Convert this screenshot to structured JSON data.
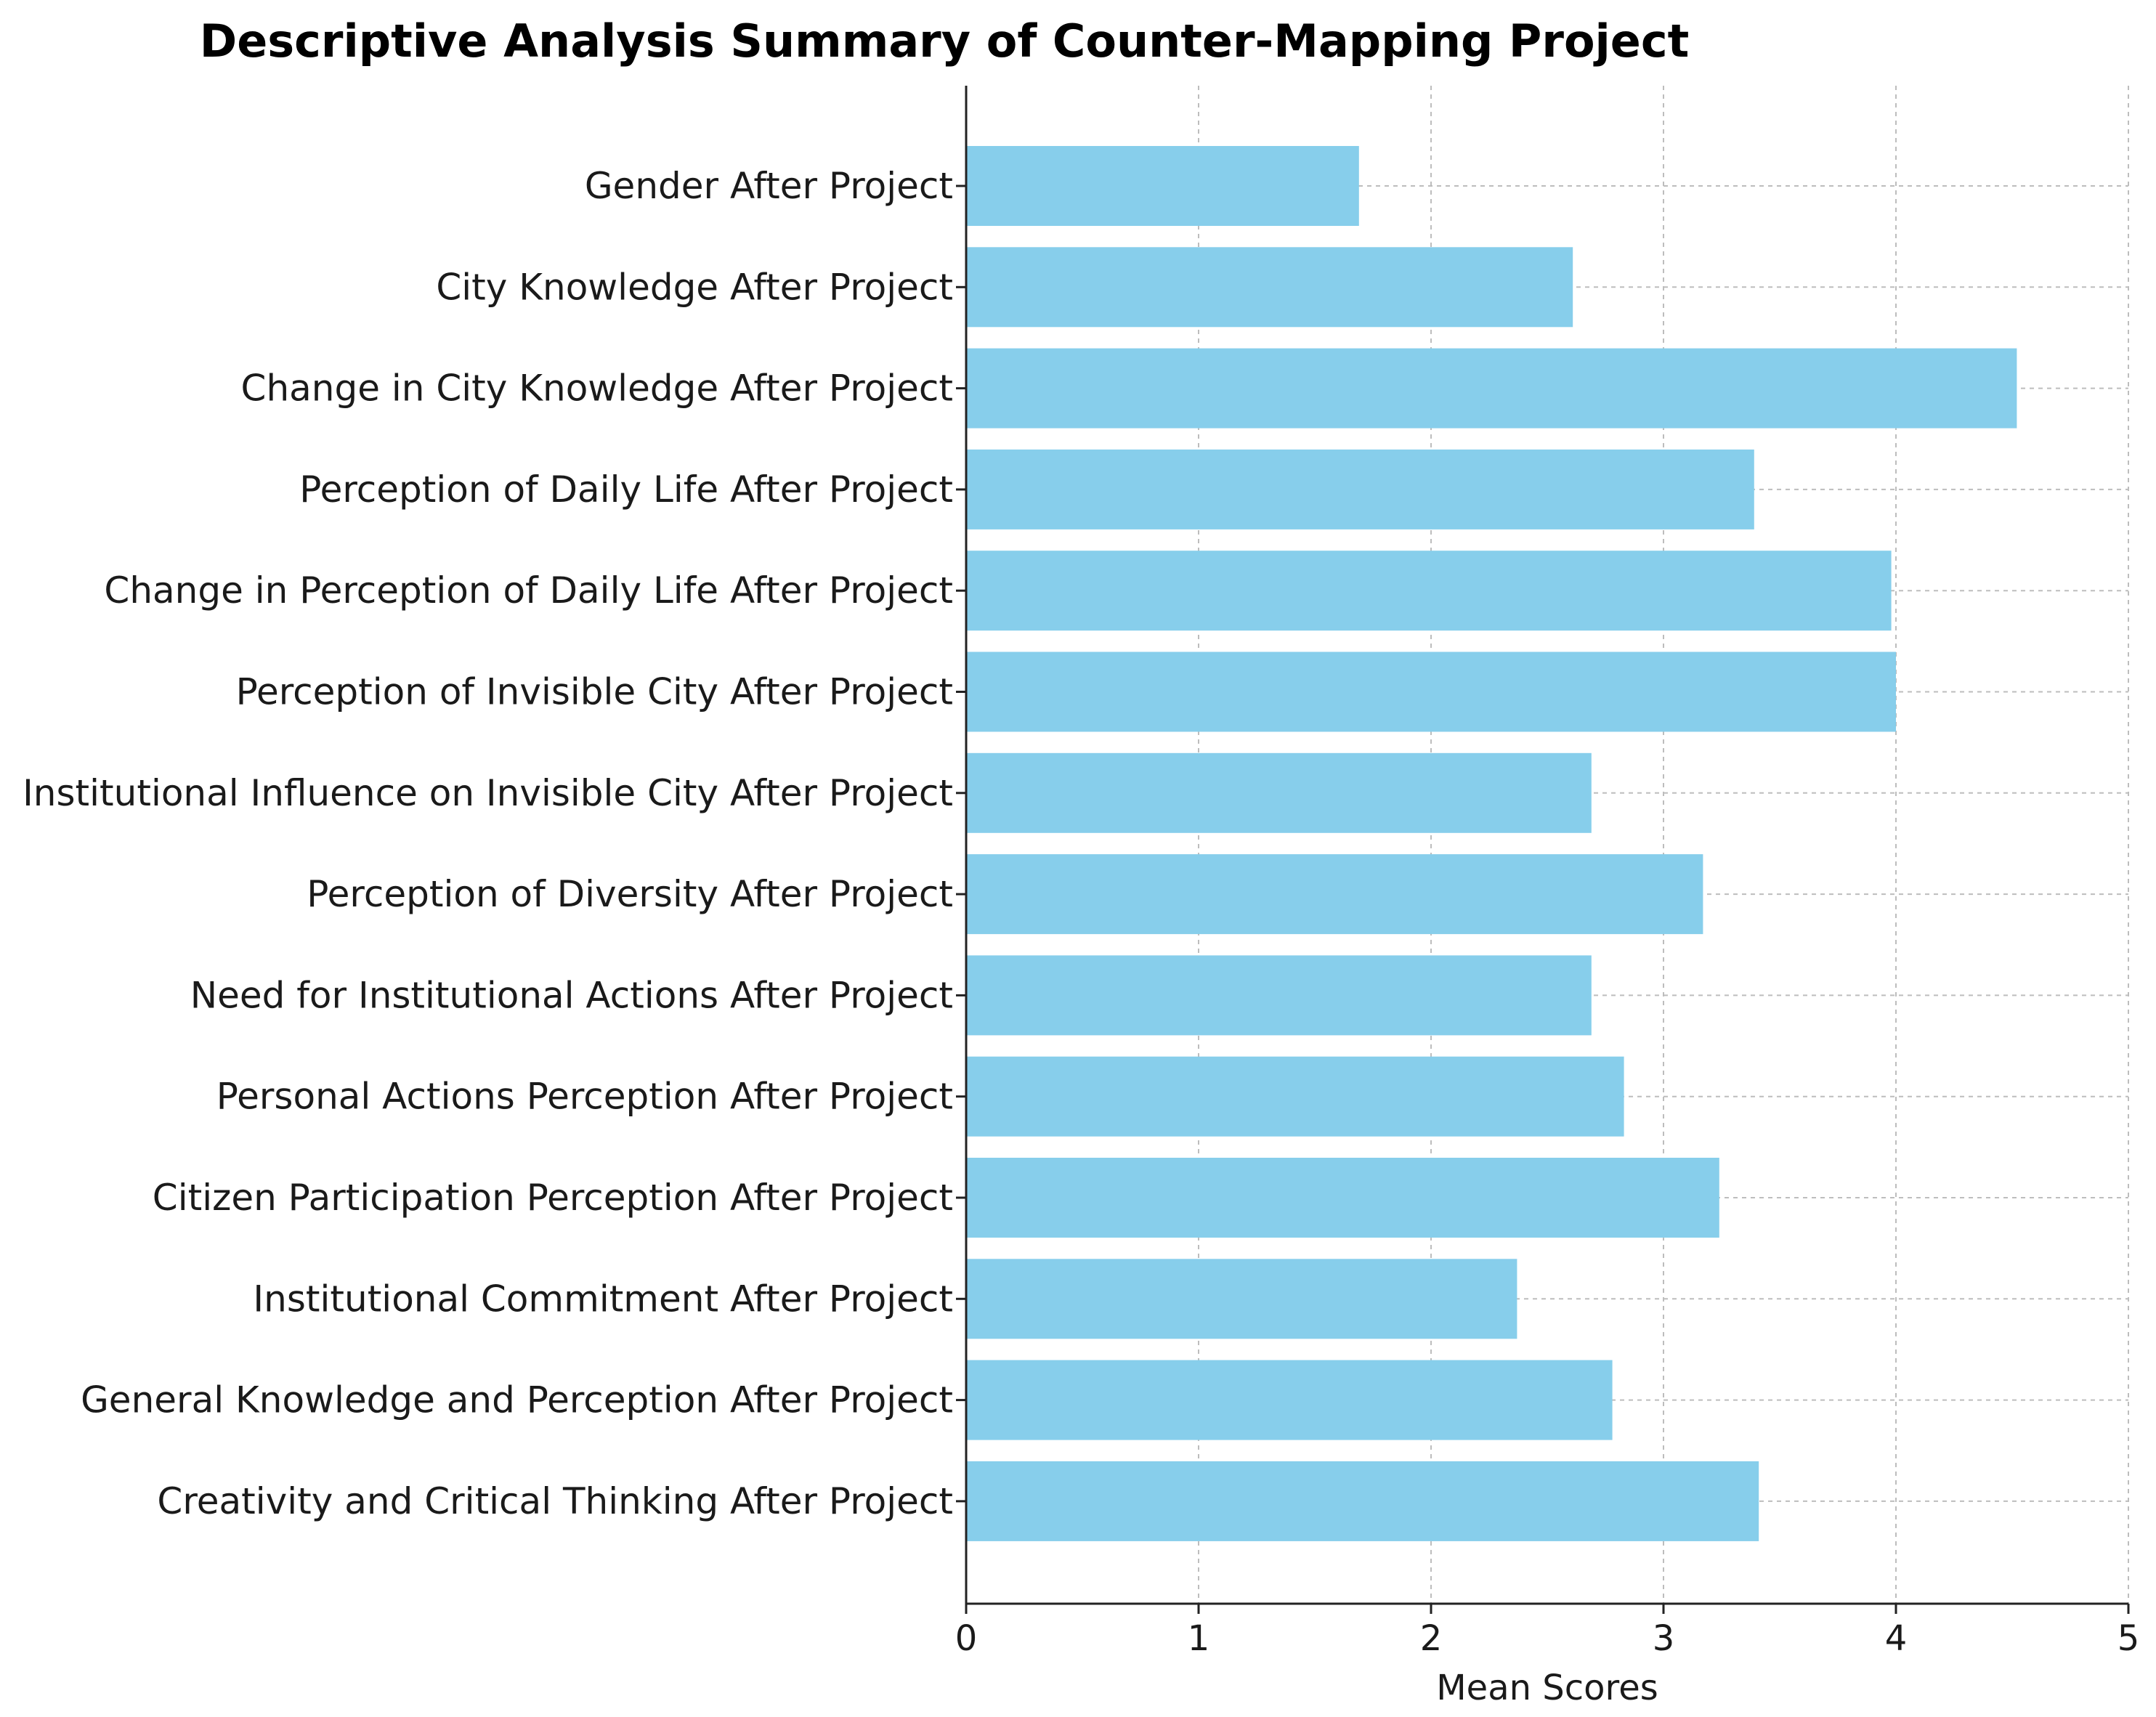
{
  "chart_data": {
    "type": "bar",
    "orientation": "horizontal",
    "title": "Descriptive Analysis Summary of Counter-Mapping Project",
    "xlabel": "Mean Scores",
    "ylabel": "",
    "xlim": [
      0,
      5
    ],
    "xticks": [
      "0",
      "1",
      "2",
      "3",
      "4",
      "5"
    ],
    "grid": true,
    "bar_color": "#87CEEB",
    "categories": [
      "Gender After Project",
      "City Knowledge After Project",
      "Change in City Knowledge After Project",
      "Perception of Daily Life After Project",
      "Change in Perception of Daily Life After Project",
      "Perception of Invisible City After Project",
      "Institutional Influence on Invisible City After Project",
      "Perception of Diversity After Project",
      "Need for Institutional Actions After Project",
      "Personal Actions Perception After Project",
      "Citizen Participation Perception After Project",
      "Institutional Commitment After Project",
      "General Knowledge and Perception After Project",
      "Creativity and Critical Thinking After Project"
    ],
    "values": [
      1.69,
      2.61,
      4.52,
      3.39,
      3.98,
      4.0,
      2.69,
      3.17,
      2.69,
      2.83,
      3.24,
      2.37,
      2.78,
      3.41
    ]
  }
}
